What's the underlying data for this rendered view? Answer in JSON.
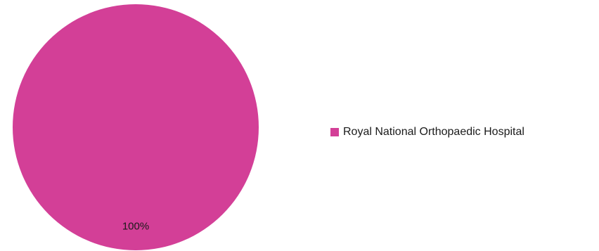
{
  "chart_data": {
    "type": "pie",
    "categories": [
      "Royal National Orthopaedic Hospital"
    ],
    "values": [
      100
    ],
    "data_labels": [
      "100%"
    ],
    "colors": [
      "#d33f97"
    ],
    "legend_position": "right"
  }
}
